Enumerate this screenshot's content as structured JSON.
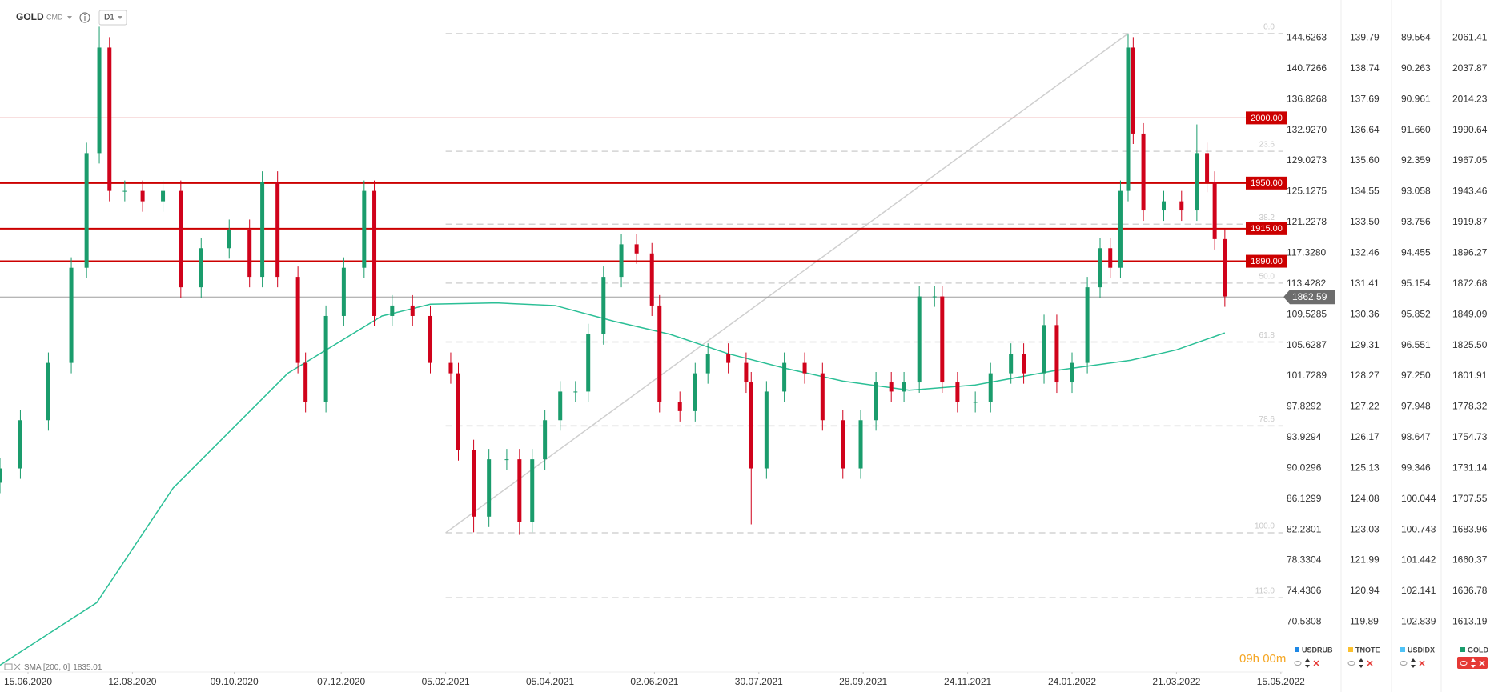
{
  "header": {
    "symbol": "GOLD",
    "market": "CMD",
    "timeframe": "D1"
  },
  "chart_data": {
    "type": "candlestick",
    "x": [
      0,
      8,
      19,
      28,
      34,
      39,
      43,
      49,
      56,
      64,
      71,
      79,
      90,
      98,
      103,
      109,
      117,
      120,
      128,
      135,
      143,
      147,
      154,
      162,
      169,
      177,
      180,
      186,
      192,
      199,
      204,
      209,
      214,
      220,
      226,
      231,
      237,
      244,
      250,
      256,
      259,
      267,
      273,
      278,
      286,
      293,
      295,
      301,
      308,
      316,
      323,
      331,
      338,
      344,
      350,
      355,
      361,
      367,
      370,
      376,
      383,
      389,
      397,
      402,
      410,
      415,
      421,
      427,
      432,
      436,
      440,
      443,
      445,
      449,
      457,
      464,
      470,
      474,
      477,
      481
    ],
    "open": [
      1720,
      1731,
      1768,
      1812,
      1885,
      1973,
      2054,
      1944,
      1944,
      1936,
      1944,
      1870,
      1900,
      1914,
      1878,
      1951,
      1878,
      1812,
      1782,
      1848,
      1885,
      1944,
      1848,
      1856,
      1848,
      1812,
      1804,
      1745,
      1694,
      1738,
      1738,
      1690,
      1738,
      1768,
      1790,
      1790,
      1834,
      1878,
      1903,
      1896,
      1856,
      1782,
      1775,
      1804,
      1819,
      1812,
      1797,
      1731,
      1790,
      1812,
      1804,
      1768,
      1731,
      1768,
      1797,
      1790,
      1797,
      1863,
      1863,
      1797,
      1782,
      1782,
      1804,
      1819,
      1804,
      1841,
      1797,
      1812,
      1870,
      1900,
      1885,
      1944,
      2054,
      1988,
      1929,
      1936,
      1929,
      1973,
      1951,
      1907
    ],
    "high": [
      1739,
      1776,
      1820,
      1893,
      1981,
      2070,
      2062,
      1952,
      1952,
      1952,
      1952,
      1908,
      1922,
      1922,
      1959,
      1959,
      1886,
      1820,
      1856,
      1893,
      1952,
      1952,
      1864,
      1864,
      1856,
      1820,
      1812,
      1753,
      1746,
      1746,
      1746,
      1746,
      1776,
      1798,
      1798,
      1842,
      1886,
      1911,
      1911,
      1904,
      1864,
      1790,
      1812,
      1827,
      1827,
      1820,
      1805,
      1798,
      1820,
      1820,
      1812,
      1776,
      1776,
      1805,
      1805,
      1805,
      1871,
      1871,
      1871,
      1805,
      1790,
      1812,
      1827,
      1827,
      1849,
      1849,
      1820,
      1878,
      1908,
      1908,
      1952,
      2064,
      2062,
      1996,
      1944,
      1944,
      1995,
      1981,
      1959,
      1915
    ],
    "low": [
      1712,
      1723,
      1760,
      1804,
      1877,
      1965,
      1936,
      1936,
      1928,
      1928,
      1862,
      1862,
      1892,
      1870,
      1870,
      1870,
      1804,
      1774,
      1774,
      1840,
      1877,
      1840,
      1840,
      1840,
      1804,
      1796,
      1737,
      1682,
      1686,
      1730,
      1680,
      1682,
      1730,
      1760,
      1782,
      1782,
      1826,
      1870,
      1888,
      1848,
      1774,
      1767,
      1767,
      1796,
      1804,
      1789,
      1688,
      1723,
      1782,
      1796,
      1760,
      1723,
      1723,
      1760,
      1782,
      1782,
      1789,
      1855,
      1789,
      1774,
      1774,
      1774,
      1796,
      1796,
      1796,
      1789,
      1789,
      1804,
      1862,
      1877,
      1877,
      1936,
      1980,
      1921,
      1921,
      1921,
      1921,
      1943,
      1899,
      1855
    ],
    "close": [
      1731,
      1768,
      1812,
      1885,
      1973,
      2054,
      1944,
      1944,
      1936,
      1944,
      1870,
      1900,
      1914,
      1878,
      1951,
      1878,
      1812,
      1782,
      1848,
      1885,
      1944,
      1848,
      1856,
      1848,
      1812,
      1804,
      1745,
      1694,
      1738,
      1738,
      1690,
      1738,
      1768,
      1790,
      1790,
      1834,
      1878,
      1903,
      1896,
      1856,
      1782,
      1775,
      1804,
      1819,
      1812,
      1797,
      1731,
      1790,
      1812,
      1804,
      1768,
      1731,
      1768,
      1797,
      1790,
      1797,
      1863,
      1863,
      1797,
      1782,
      1782,
      1804,
      1819,
      1804,
      1841,
      1797,
      1812,
      1870,
      1900,
      1885,
      1944,
      2054,
      1988,
      1929,
      1936,
      1929,
      1973,
      1951,
      1907,
      1863
    ],
    "up_color": "#1a9c6c",
    "down_color": "#d0021b",
    "xlim": [
      0,
      504
    ],
    "xticks": [
      {
        "value": 11,
        "label": "15.06.2020"
      },
      {
        "value": 52,
        "label": "12.08.2020"
      },
      {
        "value": 92,
        "label": "09.10.2020"
      },
      {
        "value": 134,
        "label": "07.12.2020"
      },
      {
        "value": 175,
        "label": "05.02.2021"
      },
      {
        "value": 216,
        "label": "05.04.2021"
      },
      {
        "value": 257,
        "label": "02.06.2021"
      },
      {
        "value": 298,
        "label": "30.07.2021"
      },
      {
        "value": 339,
        "label": "28.09.2021"
      },
      {
        "value": 380,
        "label": "24.11.2021"
      },
      {
        "value": 421,
        "label": "24.01.2022"
      },
      {
        "value": 462,
        "label": "21.03.2022"
      },
      {
        "value": 503,
        "label": "15.05.2022"
      }
    ],
    "ylim": [
      1576.6,
      2090.5
    ],
    "yticks": [
      2061.41,
      2037.87,
      2014.23,
      1990.64,
      1967.05,
      1943.46,
      1919.87,
      1896.27,
      1872.68,
      1849.09,
      {
        "value": 1825.5,
        "label": "1825.50"
      },
      1801.91,
      1778.32,
      1754.73,
      1731.14,
      1707.55,
      1683.96,
      1660.37,
      1636.78,
      1613.19
    ],
    "last_price": 1862.59,
    "sma": {
      "name": "SMA [200, 0]",
      "last": 1835.01,
      "color": "#2bbf96",
      "x": [
        0,
        38,
        68,
        113,
        150,
        169,
        195,
        218,
        241,
        263,
        286,
        308,
        331,
        357,
        383,
        414,
        444,
        462,
        481
      ],
      "values": [
        1580,
        1628,
        1716,
        1804,
        1848,
        1857,
        1858,
        1856,
        1844,
        1834,
        1819,
        1808,
        1798,
        1791,
        1795,
        1806,
        1814,
        1822,
        1835
      ]
    },
    "levels": [
      {
        "value": 2000,
        "label": "2000.00"
      },
      {
        "value": 1950,
        "label": "1950.00"
      },
      {
        "value": 1915,
        "label": "1915.00"
      },
      {
        "value": 1890,
        "label": "1890.00"
      }
    ],
    "level_color": "#cc0000",
    "level_widths": [
      1,
      2,
      2,
      2
    ],
    "fibonacci": {
      "xlim": [
        175,
        504
      ],
      "levels": [
        {
          "value": 2064.8,
          "label": "0.0"
        },
        {
          "value": 1974.4,
          "label": "23.6"
        },
        {
          "value": 1918.4,
          "label": "38.2"
        },
        {
          "value": 1873.2,
          "label": "50.0"
        },
        {
          "value": 1828.0,
          "label": "61.8"
        },
        {
          "value": 1763.6,
          "label": "78.6"
        },
        {
          "value": 1681.6,
          "label": "100.0"
        },
        {
          "value": 1631.8,
          "label": "113.0"
        }
      ],
      "trend": {
        "x": [
          175,
          443
        ],
        "values": [
          1681.6,
          2064.8
        ]
      }
    }
  },
  "compare_axes": [
    {
      "name": "USDRUB",
      "color": "#1e88e5",
      "labels": [
        "144.6263",
        "140.7266",
        "136.8268",
        "132.9270",
        "129.0273",
        "125.1275",
        "121.2278",
        "117.3280",
        "113.4282",
        "109.5285",
        "105.6287",
        "101.7289",
        "97.8292",
        "93.9294",
        "90.0296",
        "86.1299",
        "82.2301",
        "78.3304",
        "74.4306",
        "70.5308"
      ]
    },
    {
      "name": "TNOTE",
      "color": "#fbc02d",
      "labels": [
        "139.79",
        "138.74",
        "137.69",
        "136.64",
        "135.60",
        "134.55",
        "133.50",
        "132.46",
        "131.41",
        "130.36",
        "129.31",
        "128.27",
        "127.22",
        "126.17",
        "125.13",
        "124.08",
        "123.03",
        "121.99",
        "120.94",
        "119.89"
      ]
    },
    {
      "name": "USDIDX",
      "color": "#4fc3f7",
      "labels": [
        "89.564",
        "90.263",
        "90.961",
        "91.660",
        "92.359",
        "93.058",
        "93.756",
        "94.455",
        "95.154",
        "95.852",
        "96.551",
        "97.250",
        "97.948",
        "98.647",
        "99.346",
        "100.044",
        "100.743",
        "101.442",
        "102.141",
        "102.839"
      ]
    },
    {
      "name": "GOLD",
      "color": "#1a9c6c"
    }
  ],
  "countdown": "09h 00m"
}
